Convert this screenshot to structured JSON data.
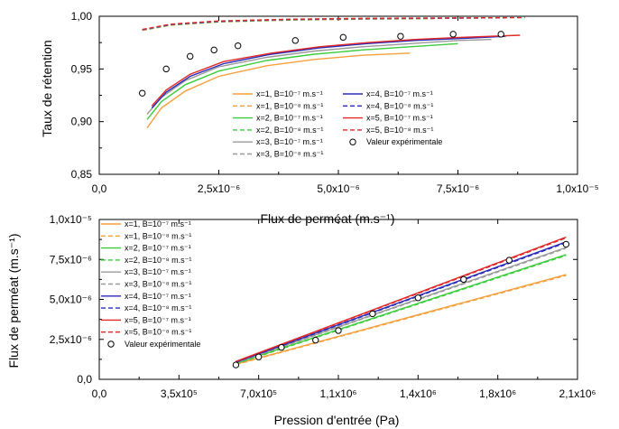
{
  "chart_data": [
    {
      "type": "line",
      "ylabel": "Taux de rétention",
      "xlabel": "Flux de perméat (m.s⁻¹)",
      "xlim": [
        0.0,
        1e-05
      ],
      "ylim": [
        0.85,
        1.0
      ],
      "x_ticks": [
        0,
        2.5e-06,
        5e-06,
        7.5e-06,
        1e-05
      ],
      "x_tick_labels": [
        "0,0",
        "2,5x10⁻⁶",
        "5,0x10⁻⁶",
        "7,5x10⁻⁶",
        "1,0x10⁻⁵"
      ],
      "y_ticks": [
        0.85,
        0.9,
        0.95,
        1.0
      ],
      "y_tick_labels": [
        "0,85",
        "0,90",
        "0,95",
        "1,00"
      ],
      "grid": false,
      "legend_position": "bottom-center",
      "series": [
        {
          "name": "x=1, B=10⁻⁷ m.s⁻¹",
          "color": "#f5a03c",
          "dash": "solid",
          "x": [
            1e-06,
            1.3e-06,
            1.8e-06,
            2.5e-06,
            3.5e-06,
            4.5e-06,
            5.5e-06,
            6.5e-06
          ],
          "y": [
            0.894,
            0.913,
            0.929,
            0.943,
            0.953,
            0.959,
            0.963,
            0.965
          ]
        },
        {
          "name": "x=1, B=10⁻⁸ m.s⁻¹",
          "color": "#f5a03c",
          "dash": "dash",
          "x": [
            9e-07,
            1.5e-06,
            2.5e-06,
            4e-06,
            5.5e-06,
            7e-06
          ],
          "y": [
            0.9865,
            0.9915,
            0.9945,
            0.9963,
            0.9972,
            0.9978
          ]
        },
        {
          "name": "x=2, B=10⁻⁷ m.s⁻¹",
          "color": "#3ccc3c",
          "dash": "solid",
          "x": [
            1e-06,
            1.3e-06,
            1.8e-06,
            2.5e-06,
            3.5e-06,
            4.5e-06,
            5.5e-06,
            6.5e-06,
            7.5e-06
          ],
          "y": [
            0.902,
            0.919,
            0.935,
            0.948,
            0.958,
            0.964,
            0.968,
            0.971,
            0.974
          ]
        },
        {
          "name": "x=2, B=10⁻⁸ m.s⁻¹",
          "color": "#3ccc3c",
          "dash": "dash",
          "x": [
            9e-07,
            1.5e-06,
            2.5e-06,
            4e-06,
            5.5e-06,
            7.5e-06
          ],
          "y": [
            0.9868,
            0.9918,
            0.9948,
            0.9966,
            0.9975,
            0.9981
          ]
        },
        {
          "name": "x=3, B=10⁻⁷ m.s⁻¹",
          "color": "#999999",
          "dash": "solid",
          "x": [
            1e-06,
            1.3e-06,
            1.8e-06,
            2.5e-06,
            3.5e-06,
            4.5e-06,
            5.5e-06,
            6.5e-06,
            7.5e-06,
            8.2e-06
          ],
          "y": [
            0.907,
            0.923,
            0.939,
            0.952,
            0.961,
            0.967,
            0.971,
            0.974,
            0.977,
            0.978
          ]
        },
        {
          "name": "x=3, B=10⁻⁸ m.s⁻¹",
          "color": "#999999",
          "dash": "dash",
          "x": [
            9e-07,
            1.5e-06,
            2.5e-06,
            4e-06,
            5.5e-06,
            8e-06
          ],
          "y": [
            0.987,
            0.992,
            0.995,
            0.9968,
            0.9977,
            0.9983
          ]
        },
        {
          "name": "x=4, B=10⁻⁷ m.s⁻¹",
          "color": "#2a2ab8",
          "dash": "solid",
          "x": [
            1.1e-06,
            1.4e-06,
            1.9e-06,
            2.6e-06,
            3.6e-06,
            4.6e-06,
            5.6e-06,
            6.6e-06,
            7.6e-06,
            8.5e-06
          ],
          "y": [
            0.913,
            0.928,
            0.943,
            0.955,
            0.964,
            0.97,
            0.974,
            0.977,
            0.979,
            0.981
          ]
        },
        {
          "name": "x=4, B=10⁻⁸ m.s⁻¹",
          "color": "#2a2ab8",
          "dash": "dash",
          "x": [
            9e-07,
            1.5e-06,
            2.5e-06,
            4e-06,
            5.5e-06,
            8.5e-06
          ],
          "y": [
            0.9873,
            0.9922,
            0.9952,
            0.997,
            0.9978,
            0.9985
          ]
        },
        {
          "name": "x=5, B=10⁻⁷ m.s⁻¹",
          "color": "#e02828",
          "dash": "solid",
          "x": [
            1.1e-06,
            1.4e-06,
            1.9e-06,
            2.6e-06,
            3.6e-06,
            4.6e-06,
            5.6e-06,
            6.6e-06,
            7.6e-06,
            8.8e-06
          ],
          "y": [
            0.915,
            0.93,
            0.945,
            0.957,
            0.965,
            0.971,
            0.975,
            0.978,
            0.98,
            0.982
          ]
        },
        {
          "name": "x=5, B=10⁻⁸ m.s⁻¹",
          "color": "#e02828",
          "dash": "dash",
          "x": [
            9e-07,
            1.5e-06,
            2.5e-06,
            4e-06,
            5.5e-06,
            8.9e-06
          ],
          "y": [
            0.9875,
            0.9925,
            0.9955,
            0.9972,
            0.998,
            0.9987
          ]
        }
      ],
      "points": {
        "name": "Valeur expérimentale",
        "x": [
          9e-07,
          1.4e-06,
          1.9e-06,
          2.4e-06,
          2.9e-06,
          4.1e-06,
          5.1e-06,
          6.3e-06,
          7.4e-06,
          8.4e-06
        ],
        "y": [
          0.927,
          0.95,
          0.962,
          0.968,
          0.972,
          0.977,
          0.98,
          0.981,
          0.983,
          0.983
        ]
      }
    },
    {
      "type": "line",
      "ylabel": "Flux de perméat (m.s⁻¹)",
      "xlabel": "Pression d'entrée (Pa)",
      "xlim": [
        0,
        2100000.0
      ],
      "ylim": [
        0,
        1e-05
      ],
      "x_ticks": [
        0,
        350000.0,
        700000.0,
        1050000.0,
        1400000.0,
        1750000.0,
        2100000.0
      ],
      "x_tick_labels": [
        "0,0",
        "3,5x10⁵",
        "7,0x10⁵",
        "1,1x10⁶",
        "1,4x10⁶",
        "1,8x10⁶",
        "2,1x10⁶"
      ],
      "y_ticks": [
        0,
        2.5e-06,
        5e-06,
        7.5e-06,
        1e-05
      ],
      "y_tick_labels": [
        "0,0",
        "2,5x10⁻⁶",
        "5,0x10⁻⁶",
        "7,5x10⁻⁶",
        "1,0x10⁻⁵"
      ],
      "grid": false,
      "legend_position": "top-left",
      "series": [
        {
          "name": "x=1, B=10⁻⁷ m.s⁻¹",
          "color": "#f5a03c",
          "dash": "solid",
          "x": [
            600000.0,
            2050000.0
          ],
          "y": [
            9.5e-07,
            6.55e-06
          ]
        },
        {
          "name": "x=1, B=10⁻⁸ m.s⁻¹",
          "color": "#f5a03c",
          "dash": "dash",
          "x": [
            600000.0,
            2050000.0
          ],
          "y": [
            9.2e-07,
            6.5e-06
          ]
        },
        {
          "name": "x=2, B=10⁻⁷ m.s⁻¹",
          "color": "#3ccc3c",
          "dash": "solid",
          "x": [
            600000.0,
            2050000.0
          ],
          "y": [
            1e-06,
            7.8e-06
          ]
        },
        {
          "name": "x=2, B=10⁻⁸ m.s⁻¹",
          "color": "#3ccc3c",
          "dash": "dash",
          "x": [
            600000.0,
            2050000.0
          ],
          "y": [
            9.7e-07,
            7.75e-06
          ]
        },
        {
          "name": "x=3, B=10⁻⁷ m.s⁻¹",
          "color": "#999999",
          "dash": "solid",
          "x": [
            600000.0,
            2050000.0
          ],
          "y": [
            1.05e-06,
            8.25e-06
          ]
        },
        {
          "name": "x=3, B=10⁻⁸ m.s⁻¹",
          "color": "#999999",
          "dash": "dash",
          "x": [
            600000.0,
            2050000.0
          ],
          "y": [
            1.03e-06,
            8.2e-06
          ]
        },
        {
          "name": "x=4, B=10⁻⁷ m.s⁻¹",
          "color": "#2a2ab8",
          "dash": "solid",
          "x": [
            600000.0,
            2050000.0
          ],
          "y": [
            1.08e-06,
            8.6e-06
          ]
        },
        {
          "name": "x=4, B=10⁻⁸ m.s⁻¹",
          "color": "#2a2ab8",
          "dash": "dash",
          "x": [
            600000.0,
            2050000.0
          ],
          "y": [
            1.06e-06,
            8.55e-06
          ]
        },
        {
          "name": "x=5, B=10⁻⁷ m.s⁻¹",
          "color": "#e02828",
          "dash": "solid",
          "x": [
            600000.0,
            2050000.0
          ],
          "y": [
            1.12e-06,
            8.9e-06
          ]
        },
        {
          "name": "x=5, B=10⁻⁸ m.s⁻¹",
          "color": "#e02828",
          "dash": "dash",
          "x": [
            600000.0,
            2050000.0
          ],
          "y": [
            1.1e-06,
            8.85e-06
          ]
        }
      ],
      "points": {
        "name": "Valeur expérimentale",
        "x": [
          600000.0,
          700000.0,
          800000.0,
          950000.0,
          1050000.0,
          1200000.0,
          1400000.0,
          1600000.0,
          1800000.0,
          2050000.0
        ],
        "y": [
          9e-07,
          1.4e-06,
          2e-06,
          2.45e-06,
          3.05e-06,
          4.1e-06,
          5.1e-06,
          6.25e-06,
          7.45e-06,
          8.45e-06
        ]
      }
    }
  ]
}
